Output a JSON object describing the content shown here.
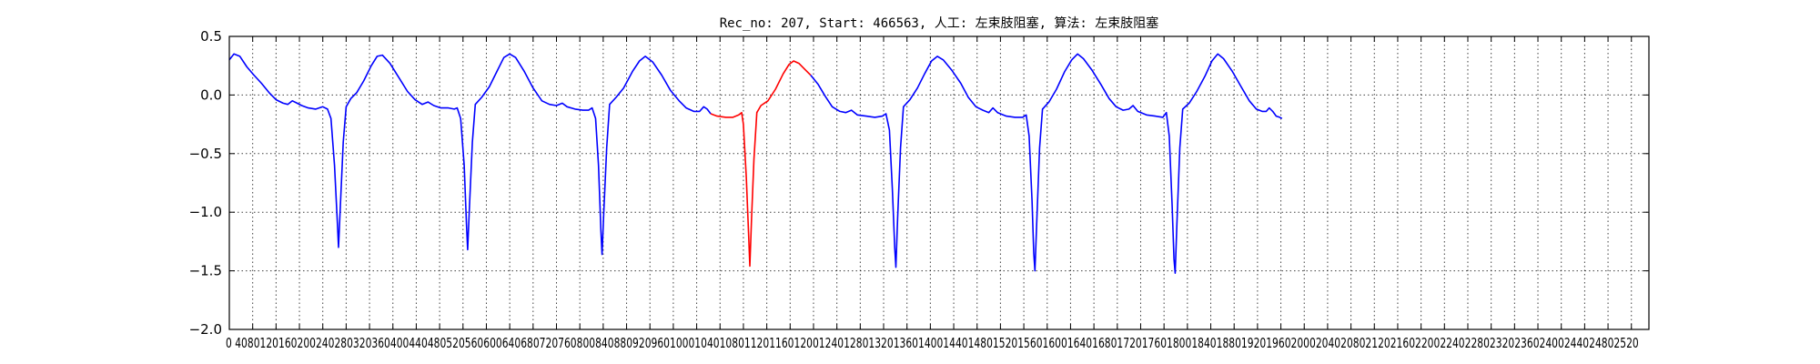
{
  "chart_data": {
    "type": "line",
    "title": "Rec_no: 207, Start: 466563, 人工: 左束肢阻塞, 算法: 左束肢阻塞",
    "xlabel": "",
    "ylabel": "",
    "xlim": [
      0,
      2430
    ],
    "ylim": [
      -2.0,
      0.5
    ],
    "yticks": [
      0.5,
      0.0,
      -0.5,
      -1.0,
      -1.5,
      -2.0
    ],
    "ytick_labels": [
      "0.5",
      "0.0",
      "−0.5",
      "−1.0",
      "−1.5",
      "−2.0"
    ],
    "xtick_step": 40,
    "xtick_max": 2400,
    "xtick_labels_text": "0 4080120160200240280320360400440480520560600640680720760800840880920960100010401080112011601200124012801320136014001440148015201560160016401680172017601800184018801920196020002040208021202160220022402280232023602400244024802520",
    "grid": true,
    "series": [
      {
        "color": "#0000ff",
        "segments": [
          [
            [
              0,
              0.3
            ],
            [
              8,
              0.35
            ],
            [
              18,
              0.33
            ],
            [
              30,
              0.24
            ],
            [
              42,
              0.17
            ],
            [
              55,
              0.1
            ],
            [
              68,
              0.02
            ],
            [
              80,
              -0.04
            ],
            [
              92,
              -0.07
            ],
            [
              100,
              -0.08
            ],
            [
              108,
              -0.05
            ],
            [
              116,
              -0.07
            ],
            [
              124,
              -0.09
            ],
            [
              135,
              -0.11
            ],
            [
              148,
              -0.12
            ],
            [
              160,
              -0.1
            ],
            [
              168,
              -0.12
            ],
            [
              174,
              -0.2
            ],
            [
              180,
              -0.6
            ],
            [
              185,
              -1.1
            ],
            [
              187,
              -1.3
            ],
            [
              190,
              -0.95
            ],
            [
              195,
              -0.4
            ],
            [
              200,
              -0.1
            ],
            [
              208,
              -0.03
            ],
            [
              218,
              0.02
            ],
            [
              230,
              0.12
            ],
            [
              243,
              0.25
            ],
            [
              253,
              0.33
            ],
            [
              262,
              0.34
            ],
            [
              275,
              0.27
            ],
            [
              290,
              0.15
            ],
            [
              305,
              0.03
            ],
            [
              318,
              -0.04
            ],
            [
              330,
              -0.08
            ],
            [
              340,
              -0.06
            ],
            [
              350,
              -0.09
            ],
            [
              362,
              -0.11
            ],
            [
              375,
              -0.11
            ],
            [
              385,
              -0.12
            ],
            [
              390,
              -0.11
            ],
            [
              396,
              -0.2
            ],
            [
              402,
              -0.6
            ],
            [
              406,
              -1.1
            ],
            [
              408,
              -1.32
            ],
            [
              411,
              -0.95
            ],
            [
              416,
              -0.4
            ],
            [
              421,
              -0.08
            ],
            [
              432,
              -0.02
            ],
            [
              445,
              0.07
            ],
            [
              458,
              0.2
            ],
            [
              470,
              0.32
            ],
            [
              480,
              0.35
            ],
            [
              490,
              0.32
            ],
            [
              505,
              0.2
            ],
            [
              520,
              0.06
            ],
            [
              535,
              -0.05
            ],
            [
              548,
              -0.08
            ],
            [
              560,
              -0.09
            ],
            [
              570,
              -0.07
            ],
            [
              578,
              -0.1
            ],
            [
              592,
              -0.12
            ],
            [
              605,
              -0.13
            ],
            [
              615,
              -0.13
            ],
            [
              621,
              -0.11
            ],
            [
              627,
              -0.2
            ],
            [
              632,
              -0.6
            ],
            [
              636,
              -1.15
            ],
            [
              638,
              -1.36
            ],
            [
              641,
              -1.0
            ],
            [
              646,
              -0.45
            ],
            [
              651,
              -0.08
            ],
            [
              662,
              -0.02
            ],
            [
              675,
              0.06
            ],
            [
              690,
              0.2
            ],
            [
              702,
              0.29
            ],
            [
              712,
              0.33
            ],
            [
              725,
              0.28
            ],
            [
              740,
              0.17
            ],
            [
              755,
              0.04
            ],
            [
              770,
              -0.05
            ],
            [
              782,
              -0.11
            ],
            [
              795,
              -0.14
            ],
            [
              805,
              -0.14
            ],
            [
              812,
              -0.1
            ],
            [
              818,
              -0.12
            ],
            [
              824,
              -0.16
            ]
          ]
        ]
      },
      {
        "color": "#ff0000",
        "segments": [
          [
            [
              824,
              -0.16
            ],
            [
              835,
              -0.18
            ],
            [
              850,
              -0.19
            ],
            [
              862,
              -0.19
            ],
            [
              872,
              -0.17
            ],
            [
              877,
              -0.15
            ],
            [
              880,
              -0.25
            ],
            [
              885,
              -0.7
            ],
            [
              889,
              -1.2
            ],
            [
              891,
              -1.46
            ],
            [
              894,
              -1.05
            ],
            [
              898,
              -0.55
            ],
            [
              903,
              -0.15
            ],
            [
              910,
              -0.09
            ],
            [
              922,
              -0.05
            ],
            [
              935,
              0.05
            ],
            [
              948,
              0.18
            ],
            [
              958,
              0.26
            ],
            [
              966,
              0.29
            ],
            [
              975,
              0.27
            ],
            [
              985,
              0.22
            ],
            [
              995,
              0.17
            ]
          ]
        ]
      },
      {
        "color": "#0000ff",
        "segments": [
          [
            [
              995,
              0.17
            ],
            [
              1008,
              0.09
            ],
            [
              1020,
              -0.01
            ],
            [
              1032,
              -0.1
            ],
            [
              1045,
              -0.14
            ],
            [
              1055,
              -0.15
            ],
            [
              1065,
              -0.13
            ],
            [
              1075,
              -0.17
            ],
            [
              1090,
              -0.18
            ],
            [
              1105,
              -0.19
            ],
            [
              1118,
              -0.18
            ],
            [
              1124,
              -0.16
            ],
            [
              1130,
              -0.3
            ],
            [
              1135,
              -0.8
            ],
            [
              1139,
              -1.3
            ],
            [
              1141,
              -1.47
            ],
            [
              1144,
              -1.05
            ],
            [
              1149,
              -0.45
            ],
            [
              1154,
              -0.1
            ],
            [
              1165,
              -0.04
            ],
            [
              1178,
              0.06
            ],
            [
              1190,
              0.18
            ],
            [
              1202,
              0.29
            ],
            [
              1212,
              0.33
            ],
            [
              1222,
              0.3
            ],
            [
              1237,
              0.21
            ],
            [
              1252,
              0.1
            ],
            [
              1265,
              -0.02
            ],
            [
              1278,
              -0.1
            ],
            [
              1290,
              -0.13
            ],
            [
              1300,
              -0.15
            ],
            [
              1307,
              -0.11
            ],
            [
              1315,
              -0.15
            ],
            [
              1330,
              -0.18
            ],
            [
              1345,
              -0.19
            ],
            [
              1358,
              -0.19
            ],
            [
              1364,
              -0.17
            ],
            [
              1369,
              -0.35
            ],
            [
              1374,
              -0.9
            ],
            [
              1377,
              -1.35
            ],
            [
              1379,
              -1.5
            ],
            [
              1382,
              -1.1
            ],
            [
              1387,
              -0.45
            ],
            [
              1392,
              -0.12
            ],
            [
              1403,
              -0.06
            ],
            [
              1416,
              0.05
            ],
            [
              1430,
              0.2
            ],
            [
              1442,
              0.3
            ],
            [
              1452,
              0.35
            ],
            [
              1462,
              0.31
            ],
            [
              1477,
              0.21
            ],
            [
              1492,
              0.09
            ],
            [
              1506,
              -0.03
            ],
            [
              1518,
              -0.1
            ],
            [
              1530,
              -0.13
            ],
            [
              1540,
              -0.12
            ],
            [
              1547,
              -0.09
            ],
            [
              1555,
              -0.14
            ],
            [
              1570,
              -0.17
            ],
            [
              1585,
              -0.18
            ],
            [
              1598,
              -0.19
            ],
            [
              1604,
              -0.15
            ],
            [
              1609,
              -0.35
            ],
            [
              1614,
              -0.95
            ],
            [
              1617,
              -1.4
            ],
            [
              1619,
              -1.52
            ],
            [
              1622,
              -1.1
            ],
            [
              1627,
              -0.45
            ],
            [
              1632,
              -0.12
            ],
            [
              1643,
              -0.07
            ],
            [
              1656,
              0.03
            ],
            [
              1670,
              0.16
            ],
            [
              1682,
              0.29
            ],
            [
              1692,
              0.35
            ],
            [
              1702,
              0.31
            ],
            [
              1717,
              0.2
            ],
            [
              1732,
              0.07
            ],
            [
              1746,
              -0.05
            ],
            [
              1758,
              -0.12
            ],
            [
              1768,
              -0.14
            ],
            [
              1775,
              -0.14
            ],
            [
              1780,
              -0.11
            ],
            [
              1786,
              -0.14
            ],
            [
              1792,
              -0.18
            ],
            [
              1798,
              -0.19
            ],
            [
              1802,
              -0.2
            ]
          ]
        ]
      }
    ]
  }
}
